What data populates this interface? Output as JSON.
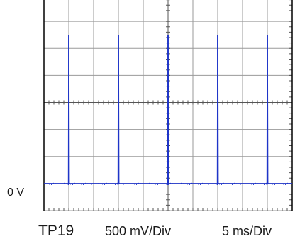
{
  "chart_data": {
    "type": "line",
    "title": "",
    "zero_label": "0 V",
    "footer": {
      "probe": "TP19",
      "vertical_scale": "500 mV/Div",
      "horizontal_scale": "5 ms/Div"
    },
    "grid": true,
    "x_unit": "ms",
    "y_unit": "V",
    "xlim": [
      0,
      50
    ],
    "ylim": [
      -0.5,
      3.5
    ],
    "baseline_volts": 0.0,
    "pulse_peak_volts": 2.75,
    "pulse_times_ms": [
      5.0,
      15.0,
      25.0,
      35.0,
      45.0
    ],
    "series": [
      {
        "values": [
          0,
          0,
          2.75,
          0,
          0,
          2.75,
          0,
          0,
          2.75,
          0,
          0,
          2.75,
          0,
          0,
          2.75,
          0,
          0
        ]
      }
    ],
    "trace_color": "#1f35c8",
    "grid_color": "#9a9a9a",
    "frame_color": "#000000"
  }
}
